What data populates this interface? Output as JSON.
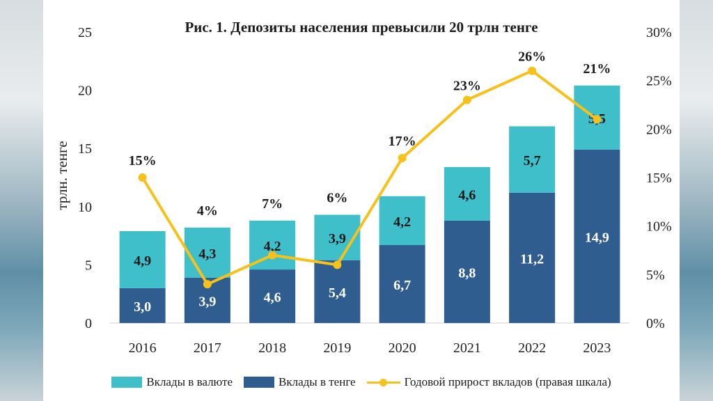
{
  "chart_data": {
    "type": "bar",
    "title": "Рис. 1. Депозиты населения превысили 20 трлн тенге",
    "ylabel": "трлн. тенге",
    "categories": [
      "2016",
      "2017",
      "2018",
      "2019",
      "2020",
      "2021",
      "2022",
      "2023"
    ],
    "ylim": [
      0,
      25
    ],
    "y_ticks": [
      "0",
      "5",
      "10",
      "15",
      "20",
      "25"
    ],
    "y2lim": [
      0,
      30
    ],
    "y2_ticks": [
      "0%",
      "5%",
      "10%",
      "15%",
      "20%",
      "25%",
      "30%"
    ],
    "stacked": true,
    "grid": false,
    "legend_position": "bottom",
    "series": [
      {
        "name": "Вклады в тенге",
        "kind": "bar",
        "axis": "left",
        "color": "#2f5d8f",
        "values": [
          3.0,
          3.9,
          4.6,
          5.4,
          6.7,
          8.8,
          11.2,
          14.9
        ],
        "labels": [
          "3,0",
          "3,9",
          "4,6",
          "5,4",
          "6,7",
          "8,8",
          "11,2",
          "14,9"
        ]
      },
      {
        "name": "Вклады в валюте",
        "kind": "bar",
        "axis": "left",
        "color": "#3fbfca",
        "values": [
          4.9,
          4.3,
          4.2,
          3.9,
          4.2,
          4.6,
          5.7,
          5.5
        ],
        "labels": [
          "4,9",
          "4,3",
          "4,2",
          "3,9",
          "4,2",
          "4,6",
          "5,7",
          "5,5"
        ]
      },
      {
        "name": "Годовой прирост вкладов (правая шкала)",
        "kind": "line",
        "axis": "right",
        "color": "#f5c11a",
        "values": [
          15,
          4,
          7,
          6,
          17,
          23,
          26,
          21
        ],
        "labels": [
          "15%",
          "4%",
          "7%",
          "6%",
          "17%",
          "23%",
          "26%",
          "21%"
        ]
      }
    ]
  },
  "legend": {
    "currency": "Вклады в валюте",
    "tenge": "Вклады в тенге",
    "growth": "Годовой прирост вкладов (правая шкала)"
  }
}
